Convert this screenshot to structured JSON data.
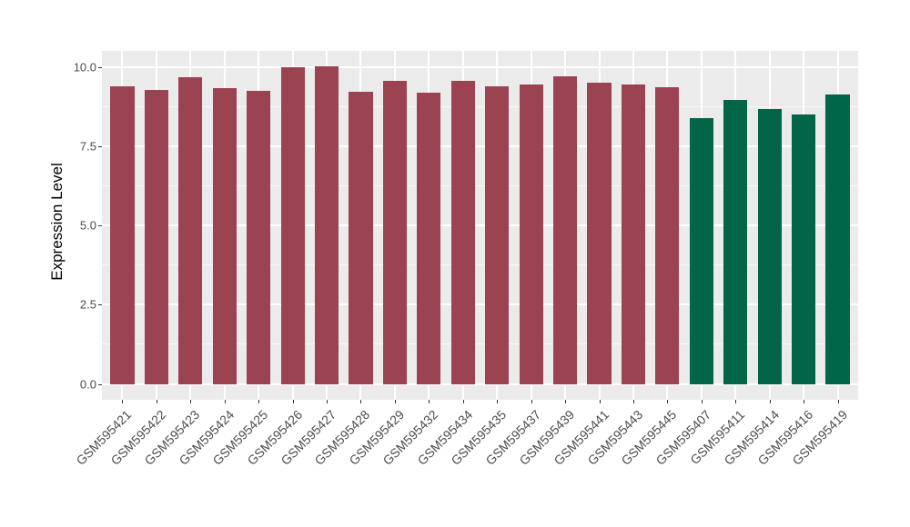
{
  "chart_data": {
    "type": "bar",
    "title": "",
    "xlabel": "",
    "ylabel": "Expression Level",
    "categories": [
      "GSM595421",
      "GSM595422",
      "GSM595423",
      "GSM595424",
      "GSM595425",
      "GSM595426",
      "GSM595427",
      "GSM595428",
      "GSM595429",
      "GSM595432",
      "GSM595434",
      "GSM595435",
      "GSM595437",
      "GSM595439",
      "GSM595441",
      "GSM595443",
      "GSM595445",
      "GSM595407",
      "GSM595411",
      "GSM595414",
      "GSM595416",
      "GSM595419"
    ],
    "values": [
      9.41,
      9.28,
      9.7,
      9.35,
      9.26,
      9.99,
      10.02,
      9.23,
      9.58,
      9.21,
      9.56,
      9.41,
      9.45,
      9.73,
      9.52,
      9.46,
      9.38,
      8.4,
      8.97,
      8.68,
      8.52,
      9.13
    ],
    "bar_colors": [
      "#9c4351",
      "#9c4351",
      "#9c4351",
      "#9c4351",
      "#9c4351",
      "#9c4351",
      "#9c4351",
      "#9c4351",
      "#9c4351",
      "#9c4351",
      "#9c4351",
      "#9c4351",
      "#9c4351",
      "#9c4351",
      "#9c4351",
      "#9c4351",
      "#9c4351",
      "#006647",
      "#006647",
      "#006647",
      "#006647",
      "#006647"
    ],
    "group_colors": {
      "group1": "#9c4351",
      "group2": "#006647"
    },
    "yticks": [
      0,
      2.5,
      5,
      7.5,
      10
    ],
    "ytick_labels": [
      "0.0",
      "2.5",
      "5.0",
      "7.5",
      "10.0"
    ],
    "yticks_minor": [
      1.25,
      3.75,
      6.25,
      8.75
    ],
    "ylim": [
      0,
      10.02
    ],
    "bar_width_ratio": 0.7,
    "grid": true,
    "legend": "none",
    "panel_bg": "#ebebeb",
    "grid_color": "#ffffff"
  }
}
